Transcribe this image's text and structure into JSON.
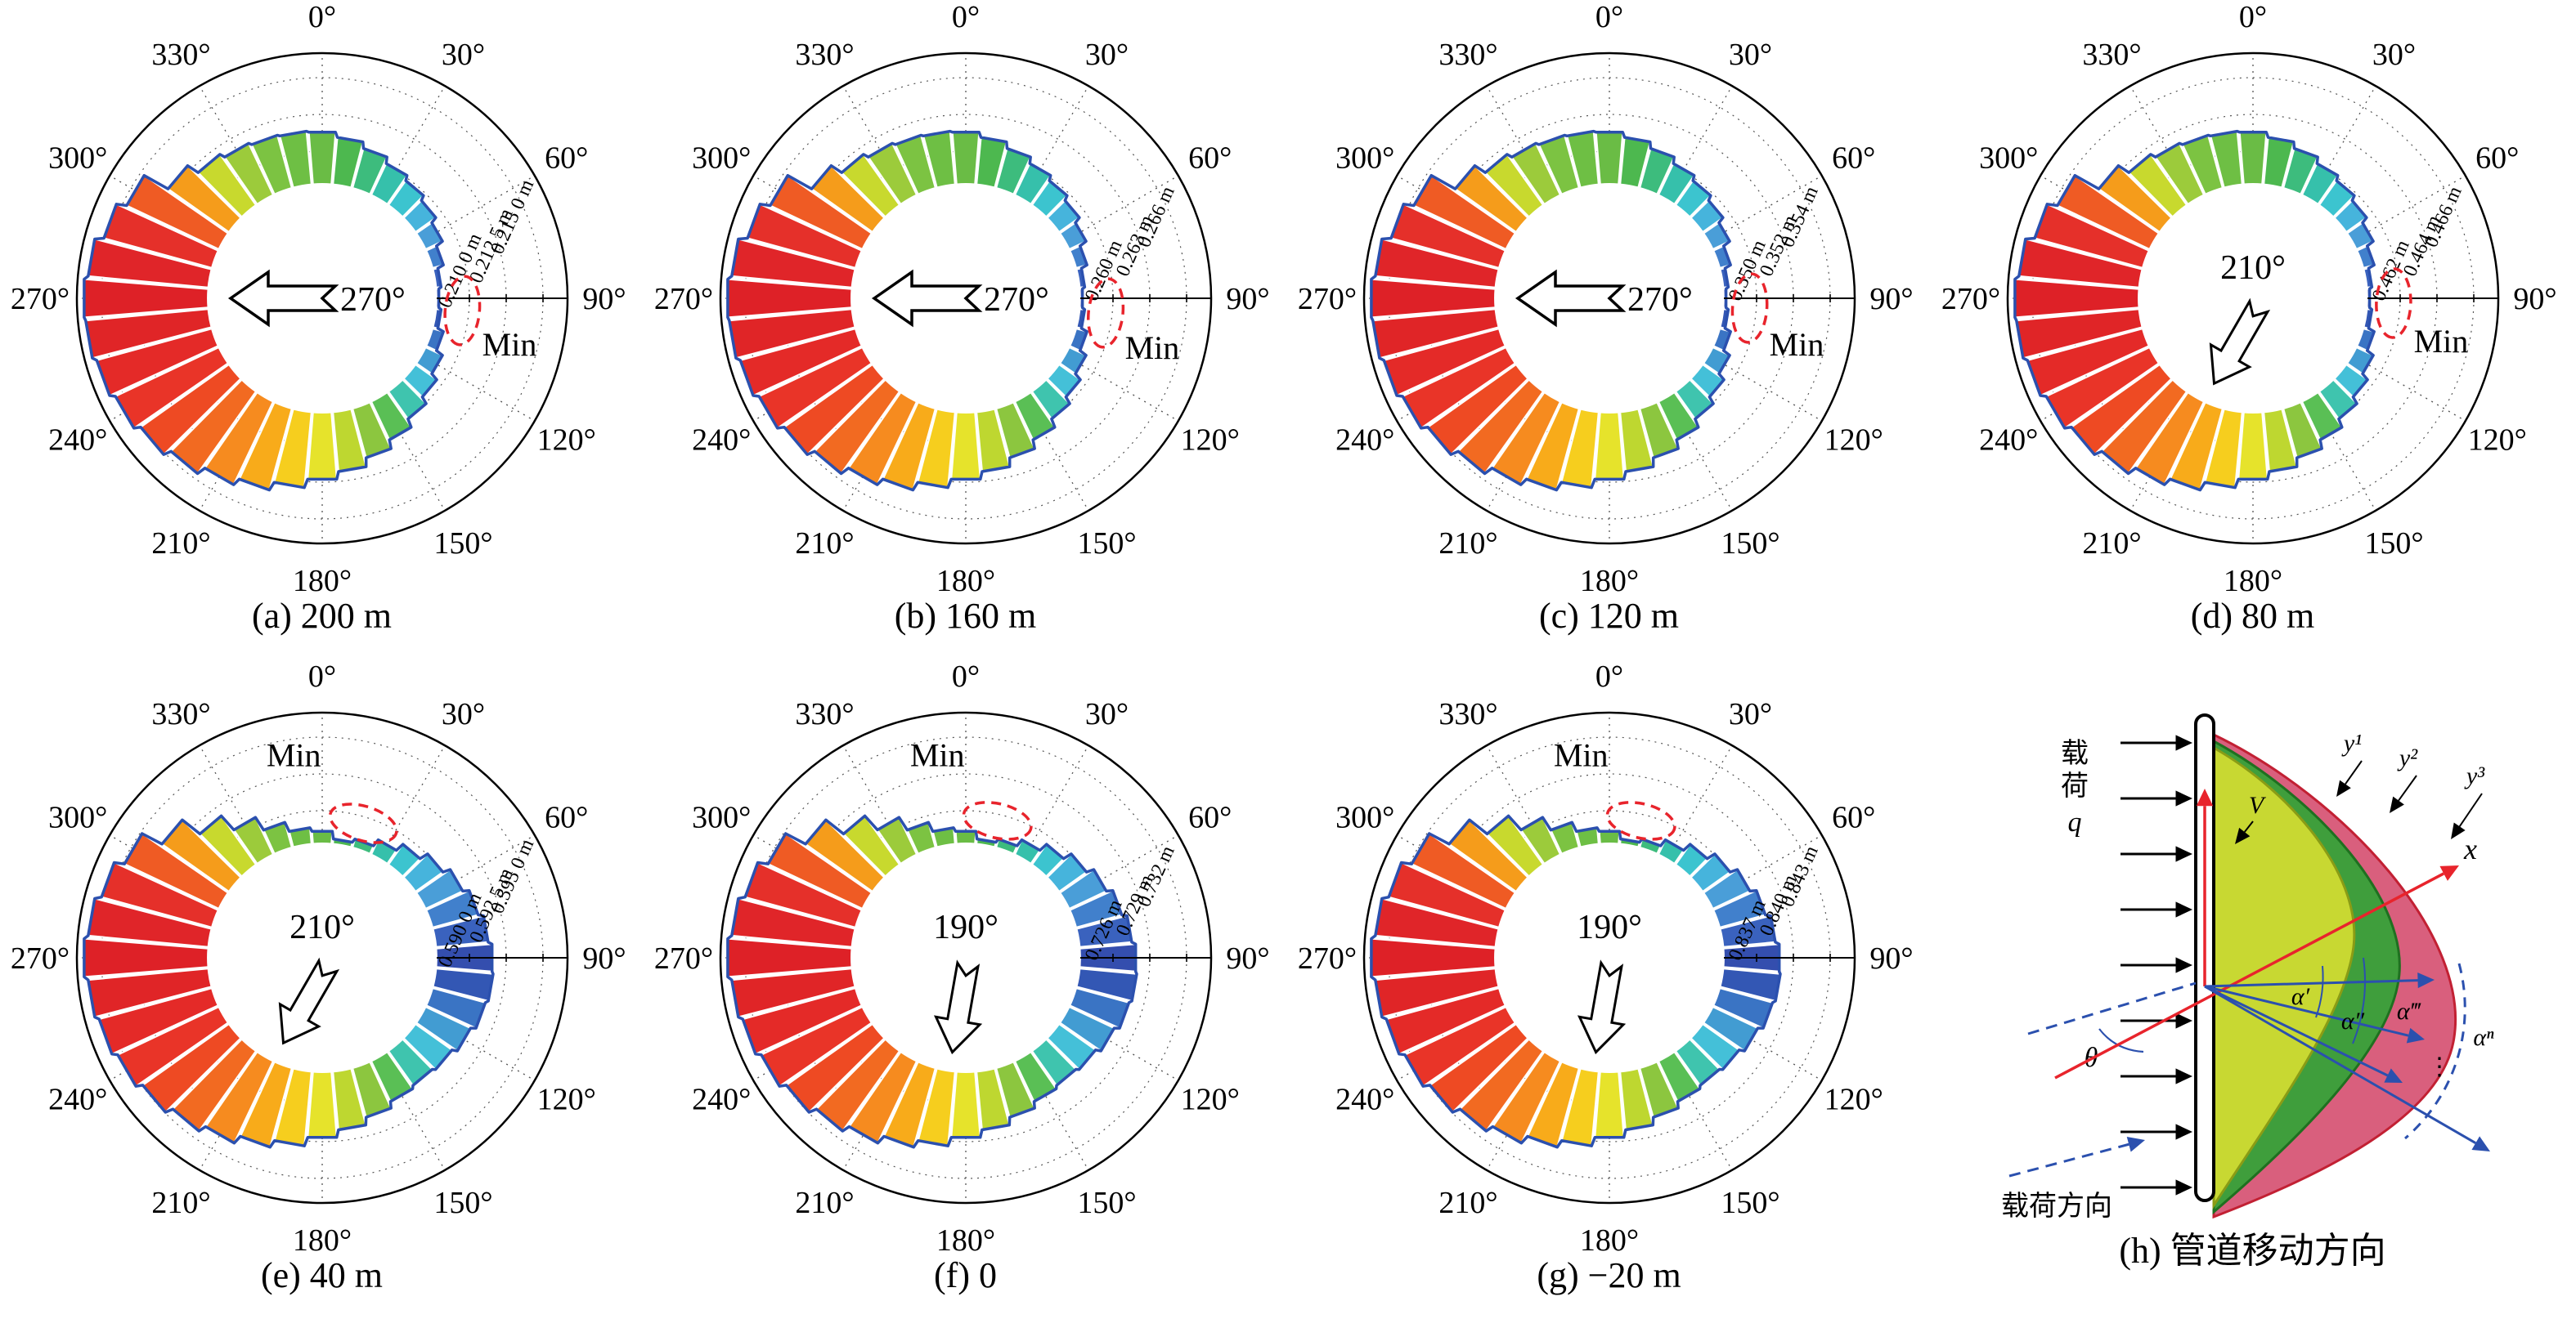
{
  "chart_data": {
    "type": "polar-bar",
    "description": "Rose diagrams of pipeline deflection magnitude vs direction at several positions, plus pipe movement-direction schematic",
    "angular_axis_labels": [
      "0°",
      "30°",
      "60°",
      "90°",
      "120°",
      "150°",
      "180°",
      "210°",
      "240°",
      "270°",
      "300°",
      "330°"
    ],
    "bar_angles_deg": [
      0,
      10,
      20,
      30,
      40,
      50,
      60,
      70,
      80,
      90,
      100,
      110,
      120,
      130,
      140,
      150,
      160,
      170,
      180,
      190,
      200,
      210,
      220,
      230,
      240,
      250,
      260,
      270,
      280,
      290,
      300,
      310,
      320,
      330,
      340,
      350
    ],
    "bar_colors": [
      "#6abc45",
      "#4db84f",
      "#3dbc7d",
      "#36c0ab",
      "#3cc4cf",
      "#46b4dc",
      "#4a9ed8",
      "#4180cc",
      "#3a62be",
      "#344eae",
      "#3357b4",
      "#3a74c4",
      "#429cd2",
      "#44c0d8",
      "#3fc4ae",
      "#5abf55",
      "#8cc63f",
      "#bed730",
      "#e6e32b",
      "#f6ce1e",
      "#f8ab1a",
      "#f68b1f",
      "#f26a21",
      "#ee4a23",
      "#e93428",
      "#e42a28",
      "#e02527",
      "#de2127",
      "#e02529",
      "#e5302a",
      "#ef5b24",
      "#f59c1b",
      "#c8d92e",
      "#9ccb3b",
      "#7cc342",
      "#6ebf44"
    ],
    "envelope_color": "#2b50ae",
    "min_marker_color": "#e8242c",
    "charts": [
      {
        "id": "a",
        "caption": "(a) 200 m",
        "radial_ticks": [
          "0.210 0 m",
          "0.212 5 m",
          "0.215 0 m"
        ],
        "radial_tick_values_m": [
          0.21,
          0.2125,
          0.215
        ],
        "arrow": {
          "label": "270°",
          "direction_deg": 270,
          "layout": "inline"
        },
        "min": {
          "label": "Min",
          "direction_deg": 95,
          "label_direction_deg": 104,
          "label_radius": 236
        },
        "values_norm": [
          0.42,
          0.38,
          0.33,
          0.28,
          0.24,
          0.2,
          0.15,
          0.09,
          0.04,
          0.02,
          0.04,
          0.09,
          0.15,
          0.21,
          0.27,
          0.34,
          0.41,
          0.48,
          0.54,
          0.61,
          0.68,
          0.74,
          0.81,
          0.87,
          0.92,
          0.96,
          0.99,
          1.0,
          0.97,
          0.9,
          0.82,
          0.6,
          0.5,
          0.46,
          0.44,
          0.43
        ]
      },
      {
        "id": "b",
        "caption": "(b) 160 m",
        "radial_ticks": [
          "0.260 m",
          "0.263 m",
          "0.266 m"
        ],
        "radial_tick_values_m": [
          0.26,
          0.263,
          0.266
        ],
        "arrow": {
          "label": "270°",
          "direction_deg": 270,
          "layout": "inline"
        },
        "min": {
          "label": "Min",
          "direction_deg": 96,
          "label_direction_deg": 105,
          "label_radius": 236
        },
        "values_norm": [
          0.42,
          0.38,
          0.33,
          0.28,
          0.24,
          0.2,
          0.15,
          0.09,
          0.04,
          0.02,
          0.04,
          0.09,
          0.15,
          0.21,
          0.27,
          0.34,
          0.41,
          0.48,
          0.54,
          0.61,
          0.68,
          0.74,
          0.81,
          0.87,
          0.92,
          0.96,
          0.99,
          1.0,
          0.97,
          0.9,
          0.82,
          0.6,
          0.5,
          0.46,
          0.44,
          0.43
        ]
      },
      {
        "id": "c",
        "caption": "(c) 120 m",
        "radial_ticks": [
          "0.350 m",
          "0.352 m",
          "0.354 m"
        ],
        "radial_tick_values_m": [
          0.35,
          0.352,
          0.354
        ],
        "arrow": {
          "label": "270°",
          "direction_deg": 270,
          "layout": "inline"
        },
        "min": {
          "label": "Min",
          "direction_deg": 94,
          "label_direction_deg": 104,
          "label_radius": 236
        },
        "values_norm": [
          0.42,
          0.38,
          0.33,
          0.28,
          0.24,
          0.2,
          0.15,
          0.09,
          0.04,
          0.02,
          0.04,
          0.09,
          0.15,
          0.21,
          0.27,
          0.34,
          0.41,
          0.48,
          0.54,
          0.61,
          0.68,
          0.74,
          0.81,
          0.87,
          0.92,
          0.96,
          0.99,
          1.0,
          0.97,
          0.9,
          0.82,
          0.6,
          0.5,
          0.46,
          0.44,
          0.43
        ]
      },
      {
        "id": "d",
        "caption": "(d) 80 m",
        "radial_ticks": [
          "0.462 m",
          "0.464 m",
          "0.466 m"
        ],
        "radial_tick_values_m": [
          0.462,
          0.464,
          0.466
        ],
        "arrow": {
          "label": "210°",
          "direction_deg": 210,
          "layout": "stacked"
        },
        "min": {
          "label": "Min",
          "direction_deg": 92,
          "label_direction_deg": 103,
          "label_radius": 236
        },
        "values_norm": [
          0.42,
          0.38,
          0.33,
          0.28,
          0.24,
          0.2,
          0.15,
          0.09,
          0.04,
          0.02,
          0.04,
          0.09,
          0.15,
          0.21,
          0.27,
          0.34,
          0.41,
          0.48,
          0.54,
          0.61,
          0.68,
          0.74,
          0.81,
          0.87,
          0.92,
          0.96,
          0.99,
          1.0,
          0.97,
          0.9,
          0.82,
          0.6,
          0.5,
          0.46,
          0.44,
          0.43
        ]
      },
      {
        "id": "e",
        "caption": "(e) 40 m",
        "radial_ticks": [
          "0.590 0 m",
          "0.592 5 m",
          "0.595 0 m"
        ],
        "radial_tick_values_m": [
          0.59,
          0.5925,
          0.595
        ],
        "arrow": {
          "label": "210°",
          "direction_deg": 210,
          "layout": "stacked"
        },
        "min": {
          "label": "Min",
          "direction_deg": 17,
          "label_direction_deg": 352,
          "label_radius": 250
        },
        "values_norm": [
          0.1,
          0.04,
          0.07,
          0.13,
          0.2,
          0.27,
          0.33,
          0.38,
          0.42,
          0.45,
          0.46,
          0.44,
          0.4,
          0.36,
          0.34,
          0.36,
          0.41,
          0.47,
          0.53,
          0.6,
          0.66,
          0.73,
          0.79,
          0.85,
          0.9,
          0.94,
          0.97,
          1.0,
          0.97,
          0.92,
          0.84,
          0.66,
          0.48,
          0.33,
          0.21,
          0.13
        ]
      },
      {
        "id": "f",
        "caption": "(f) 0",
        "radial_ticks": [
          "0.726 m",
          "0.729 m",
          "0.732 m"
        ],
        "radial_tick_values_m": [
          0.726,
          0.729,
          0.732
        ],
        "arrow": {
          "label": "190°",
          "direction_deg": 190,
          "layout": "stacked"
        },
        "min": {
          "label": "Min",
          "direction_deg": 13,
          "label_direction_deg": 352,
          "label_radius": 250
        },
        "values_norm": [
          0.1,
          0.04,
          0.07,
          0.13,
          0.2,
          0.27,
          0.33,
          0.38,
          0.42,
          0.45,
          0.46,
          0.44,
          0.4,
          0.36,
          0.34,
          0.36,
          0.41,
          0.47,
          0.53,
          0.6,
          0.66,
          0.73,
          0.79,
          0.85,
          0.9,
          0.94,
          0.97,
          1.0,
          0.97,
          0.92,
          0.84,
          0.66,
          0.48,
          0.33,
          0.21,
          0.13
        ]
      },
      {
        "id": "g",
        "caption": "(g) −20 m",
        "radial_ticks": [
          "0.837 m",
          "0.840 m",
          "0.843 m"
        ],
        "radial_tick_values_m": [
          0.837,
          0.84,
          0.843
        ],
        "arrow": {
          "label": "190°",
          "direction_deg": 190,
          "layout": "stacked"
        },
        "min": {
          "label": "Min",
          "direction_deg": 13,
          "label_direction_deg": 352,
          "label_radius": 250
        },
        "values_norm": [
          0.1,
          0.04,
          0.07,
          0.13,
          0.2,
          0.27,
          0.33,
          0.38,
          0.42,
          0.45,
          0.46,
          0.44,
          0.4,
          0.36,
          0.34,
          0.36,
          0.41,
          0.47,
          0.53,
          0.6,
          0.66,
          0.73,
          0.79,
          0.85,
          0.9,
          0.94,
          0.97,
          1.0,
          0.97,
          0.92,
          0.84,
          0.66,
          0.48,
          0.33,
          0.21,
          0.13
        ]
      },
      {
        "id": "h",
        "caption": "(h) 管道移动方向"
      }
    ],
    "diagram": {
      "caption": "(h) 管道移动方向",
      "load_chars": [
        "载",
        "荷"
      ],
      "load_q": "q",
      "load_dir_label": "载荷方向",
      "theta": "θ",
      "alphas": [
        "α′",
        "α″",
        "α‴"
      ],
      "alpha_n": "αⁿ",
      "dots": "⋮",
      "x_label": "x",
      "v_label": "V",
      "y_labels": [
        "y¹",
        "y²",
        "y³"
      ],
      "colors": {
        "lobe1": "#c8d832",
        "lobe2": "#3f9e3c",
        "lobe3": "#d95f7d",
        "red": "#e8242c",
        "blue": "#2b50ae"
      }
    }
  }
}
